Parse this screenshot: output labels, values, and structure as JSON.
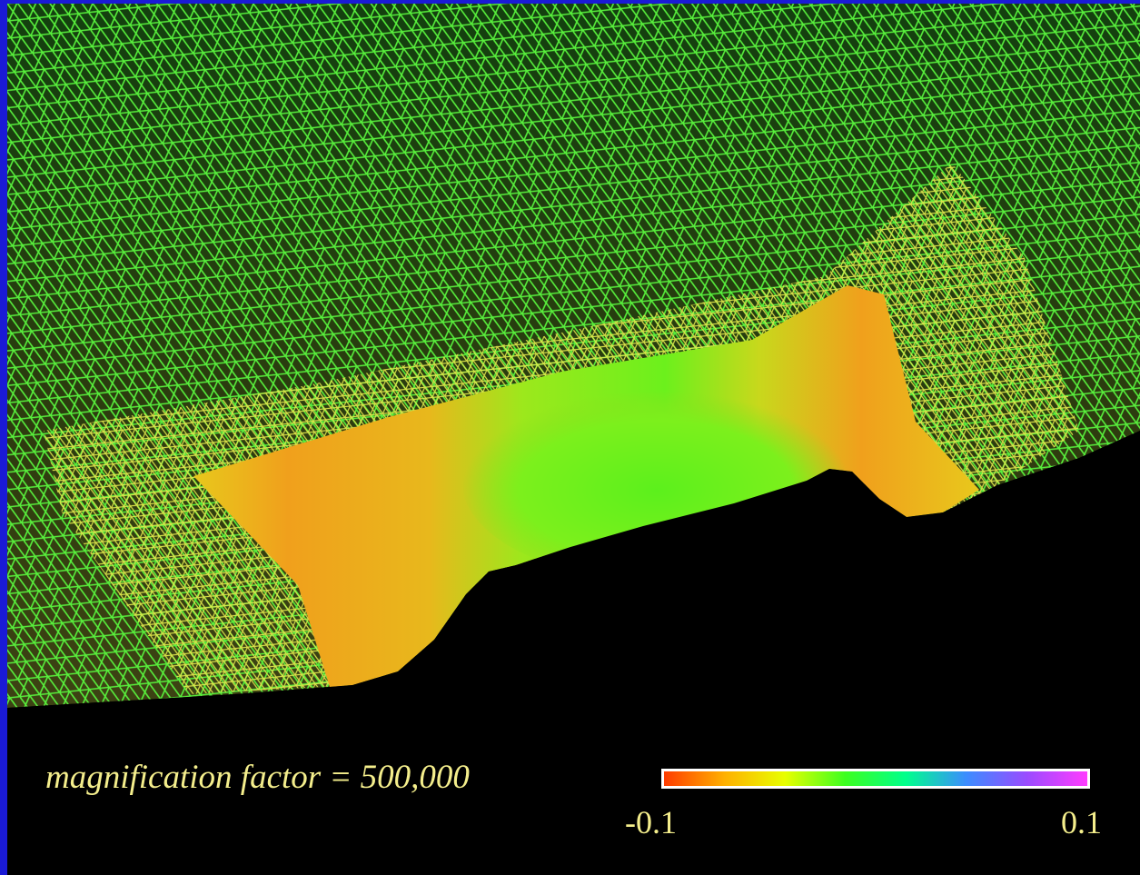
{
  "caption": "magnification factor = 500,000",
  "colorbar": {
    "min_label": "-0.1",
    "max_label": "0.1",
    "stops": [
      "#ff3c00",
      "#ffb000",
      "#e8ff00",
      "#3cff20",
      "#00ff8c",
      "#3c8cff",
      "#9a4cff",
      "#ff3cff"
    ]
  },
  "colors": {
    "background": "#000000",
    "border": "#1a1ad6",
    "mesh_top": "#4cff3c",
    "mesh_mid": "#d8f03c",
    "mesh_bottom": "#f0e84c",
    "surface_orange": "#f0a01c",
    "surface_yellow": "#e8c81c",
    "surface_green": "#6cf01c",
    "text": "#f4ee8c"
  }
}
